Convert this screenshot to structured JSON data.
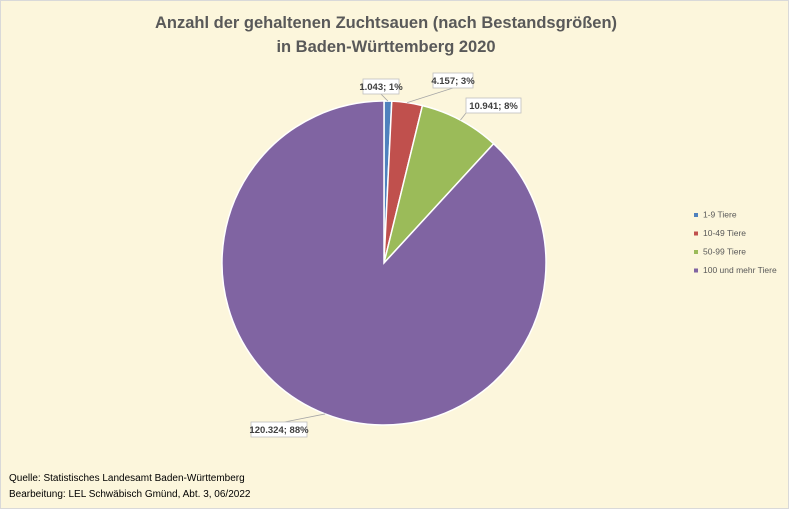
{
  "chart_data": {
    "type": "pie",
    "title_line1": "Anzahl der gehaltenen Zuchtsauen (nach Bestandsgrößen)",
    "title_line2": "in Baden-Württemberg 2020",
    "categories": [
      "1-9 Tiere",
      "10-49 Tiere",
      "50-99 Tiere",
      "100 und mehr Tiere"
    ],
    "values": [
      1043,
      4157,
      10941,
      120324
    ],
    "data_labels": [
      "1.043; 1%",
      "4.157; 3%",
      "10.941; 8%",
      "120.324; 88%"
    ],
    "colors": [
      "#4f81bd",
      "#c0504d",
      "#9bbb59",
      "#8064a2"
    ],
    "start_angle": "12 o'clock, clockwise",
    "legend_position": "right"
  },
  "footer": {
    "source": "Quelle: Statistisches Landesamt Baden-Württemberg",
    "editor": "Bearbeitung: LEL Schwäbisch Gmünd, Abt. 3, 06/2022"
  }
}
